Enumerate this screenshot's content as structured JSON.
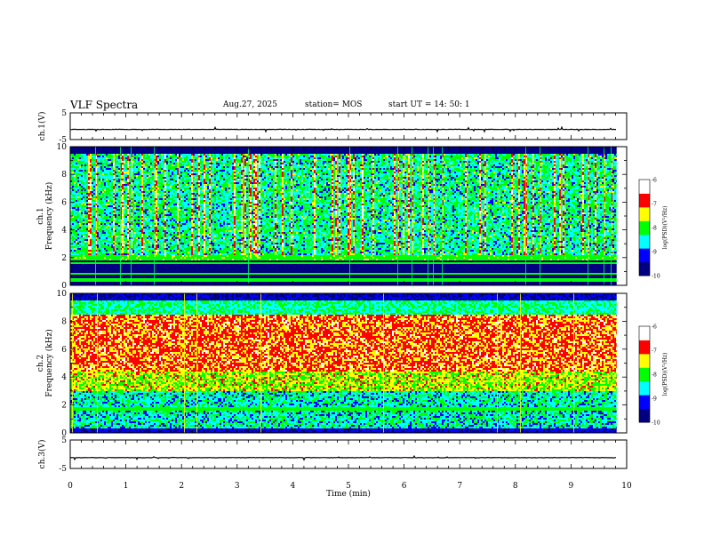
{
  "header": {
    "title": "VLF Spectra",
    "date": "Aug.27, 2025",
    "station": "station= MOS",
    "start": "start  UT  =   14: 50: 1"
  },
  "chart_data": [
    {
      "type": "line",
      "name": "ch1-waveform",
      "title": "",
      "ylabel": "ch.1(V)",
      "ylim": [
        -5,
        5
      ],
      "yticks": [
        "5",
        "-5"
      ],
      "baseline": -1.2,
      "xlim": [
        0,
        10
      ],
      "x_end": 9.82
    },
    {
      "type": "heatmap",
      "name": "ch1-spectrogram",
      "ylabel": "ch.1\nFrequency (kHz)",
      "ylim": [
        0,
        10
      ],
      "yticks": [
        "0",
        "2",
        "4",
        "6",
        "8",
        "10"
      ],
      "xlim": [
        0,
        10
      ],
      "x_end": 9.82,
      "dominant_band_khz": [
        2,
        9.5
      ],
      "colorbar": {
        "label": "log(PSD)(V²/Hz)",
        "range": [
          -10,
          -6
        ],
        "ticks": [
          "-6",
          "-7",
          "-8",
          "-9",
          "-10"
        ],
        "colors": [
          "#000080",
          "#0000ff",
          "#00ffff",
          "#00ff00",
          "#ffff00",
          "#ff0000",
          "#ffffff"
        ]
      }
    },
    {
      "type": "heatmap",
      "name": "ch2-spectrogram",
      "ylabel": "ch.2\nFrequency (kHz)",
      "ylim": [
        0,
        10
      ],
      "yticks": [
        "0",
        "2",
        "4",
        "6",
        "8",
        "10"
      ],
      "xlim": [
        0,
        10
      ],
      "x_end": 9.82,
      "dominant_band_khz": [
        4.5,
        8
      ],
      "colorbar": {
        "label": "log(PSD)(V²/Hz)",
        "range": [
          -10,
          -6
        ],
        "ticks": [
          "-6",
          "-7",
          "-8",
          "-9",
          "-10"
        ],
        "colors": [
          "#000080",
          "#0000ff",
          "#00ffff",
          "#00ff00",
          "#ffff00",
          "#ff0000",
          "#ffffff"
        ]
      }
    },
    {
      "type": "line",
      "name": "ch3-waveform",
      "ylabel": "ch.3(V)",
      "ylim": [
        -5,
        5
      ],
      "yticks": [
        "5",
        "-5"
      ],
      "baseline": -1.2,
      "xlim": [
        0,
        10
      ],
      "x_end": 9.82,
      "xlabel": "Time  (min)",
      "xticks": [
        "0",
        "1",
        "2",
        "3",
        "4",
        "5",
        "6",
        "7",
        "8",
        "9",
        "10"
      ]
    }
  ]
}
